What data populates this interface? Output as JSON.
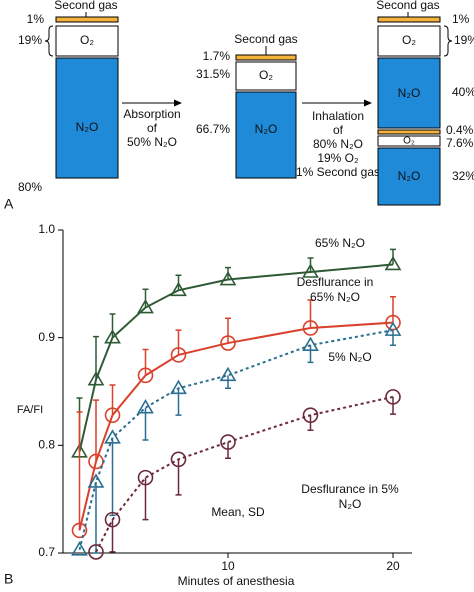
{
  "panel_a": {
    "label": "A",
    "second_gas": "Second gas",
    "o2": "O₂",
    "n2o": "N₂O",
    "col1": [
      "1%",
      "19%",
      "80%"
    ],
    "col2": [
      "1.7%",
      "31.5%",
      "66.7%"
    ],
    "col3": [
      "1%",
      "19%",
      "40%",
      "0.4%",
      "7.6%",
      "32%"
    ],
    "arrow1": [
      "Absorption",
      "of",
      "50% N₂O"
    ],
    "arrow2": [
      "Inhalation",
      "of",
      "80% N₂O",
      "19% O₂",
      "1% Second gas"
    ]
  },
  "chart_data": {
    "type": "line",
    "panel_label": "B",
    "xlabel": "Minutes of anesthesia",
    "ylabel": "FA/FI",
    "annotations": [
      "Mean, SD"
    ],
    "x": [
      1,
      2,
      3,
      5,
      7,
      10,
      15,
      20
    ],
    "xlim": [
      0,
      21
    ],
    "xticks": [
      10,
      20
    ],
    "ylim": [
      0.7,
      1.0
    ],
    "yticks": [
      0.7,
      0.8,
      0.9,
      {
        "value": 1.0,
        "label": "1.0"
      }
    ],
    "series": [
      {
        "name": "65% N₂O",
        "color": "#2e5b35",
        "marker": "triangle",
        "dashed": false,
        "error_direction": "up",
        "values": [
          0.794,
          0.861,
          0.9,
          0.928,
          0.944,
          0.954,
          0.961,
          0.968
        ],
        "errors": [
          0.05,
          0.04,
          0.022,
          0.017,
          0.014,
          0.011,
          0.013,
          0.014
        ]
      },
      {
        "name": "Desflurance in 65% N₂O",
        "color": "#d9412b",
        "marker": "circle",
        "dashed": false,
        "error_direction": "up",
        "values": [
          0.721,
          0.785,
          0.828,
          0.865,
          0.884,
          0.895,
          0.909,
          0.914
        ],
        "errors": [
          0.11,
          0.057,
          0.028,
          0.024,
          0.023,
          0.023,
          0.026,
          0.024
        ]
      },
      {
        "name": "5% N₂O",
        "color": "#2a6f8f",
        "marker": "triangle",
        "dashed": true,
        "error_direction": "down",
        "values": [
          0.703,
          0.766,
          0.807,
          0.835,
          0.853,
          0.865,
          0.893,
          0.907
        ],
        "errors": [
          null,
          0.066,
          0.072,
          0.03,
          0.025,
          0.012,
          0.016,
          0.014
        ]
      },
      {
        "name": "Desflurance in 5% N₂O",
        "color": "#6b2a3a",
        "marker": "circle",
        "dashed": true,
        "error_direction": "down",
        "values": [
          null,
          0.701,
          0.731,
          0.77,
          0.787,
          0.803,
          0.828,
          0.845
        ],
        "errors": [
          null,
          null,
          0.03,
          0.039,
          0.033,
          0.015,
          0.014,
          0.016
        ]
      }
    ]
  }
}
